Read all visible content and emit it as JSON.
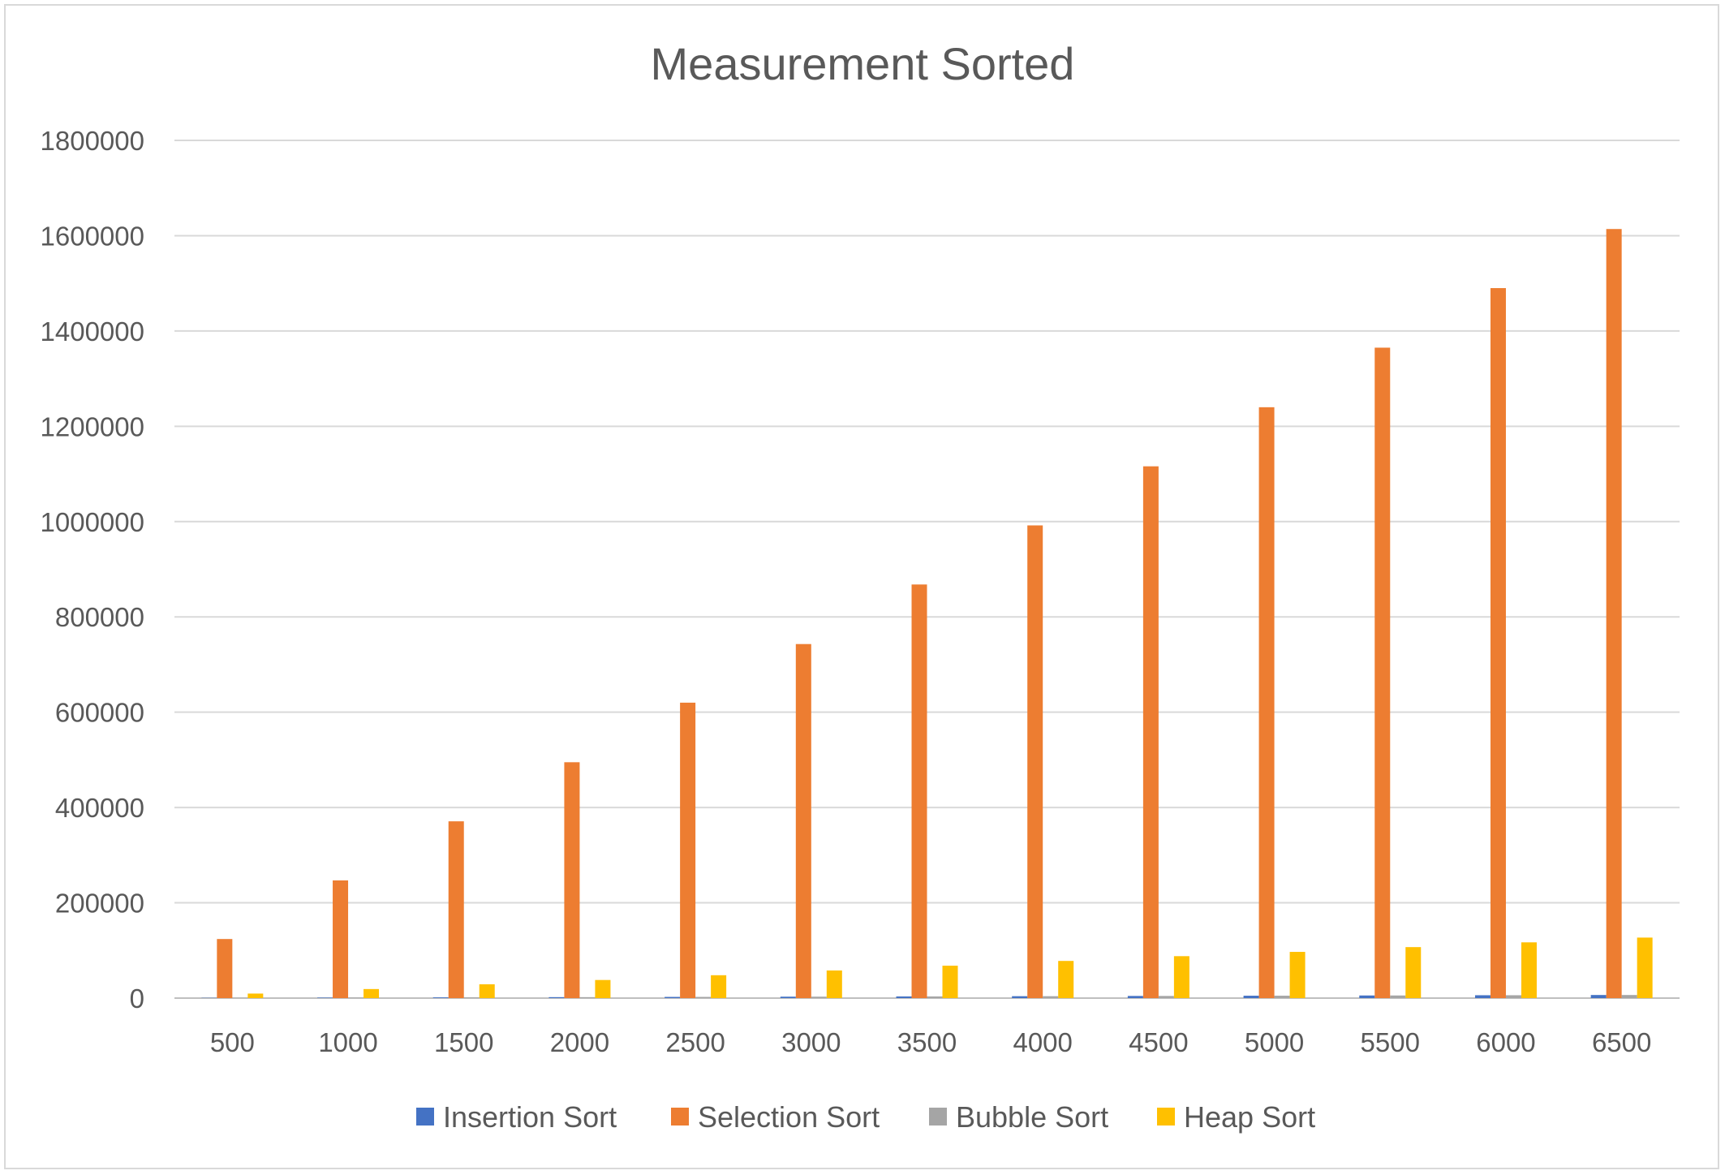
{
  "chart_data": {
    "type": "bar",
    "title": "Measurement Sorted",
    "xlabel": "",
    "ylabel": "",
    "categories": [
      "500",
      "1000",
      "1500",
      "2000",
      "2500",
      "3000",
      "3500",
      "4000",
      "4500",
      "5000",
      "5500",
      "6000",
      "6500"
    ],
    "ylim": [
      0,
      1800000
    ],
    "yticks": [
      0,
      200000,
      400000,
      600000,
      800000,
      1000000,
      1200000,
      1400000,
      1600000,
      1800000
    ],
    "grid": true,
    "legend_position": "bottom",
    "series": [
      {
        "name": "Insertion Sort",
        "color": "#4472c4",
        "values": [
          500,
          1000,
          1500,
          2000,
          2500,
          3000,
          3500,
          4000,
          4500,
          5000,
          5500,
          6000,
          6500
        ]
      },
      {
        "name": "Selection Sort",
        "color": "#ed7d31",
        "values": [
          124000,
          247000,
          371000,
          495000,
          620000,
          743000,
          868000,
          992000,
          1116000,
          1240000,
          1365000,
          1490000,
          1614000
        ]
      },
      {
        "name": "Bubble Sort",
        "color": "#a5a5a5",
        "values": [
          500,
          1000,
          1500,
          2000,
          2500,
          3000,
          3500,
          4000,
          4500,
          5000,
          5500,
          6000,
          6500
        ]
      },
      {
        "name": "Heap Sort",
        "color": "#ffc000",
        "values": [
          9500,
          19000,
          29000,
          38000,
          48000,
          58000,
          68000,
          78000,
          88000,
          97000,
          107000,
          117000,
          127000
        ]
      }
    ]
  }
}
